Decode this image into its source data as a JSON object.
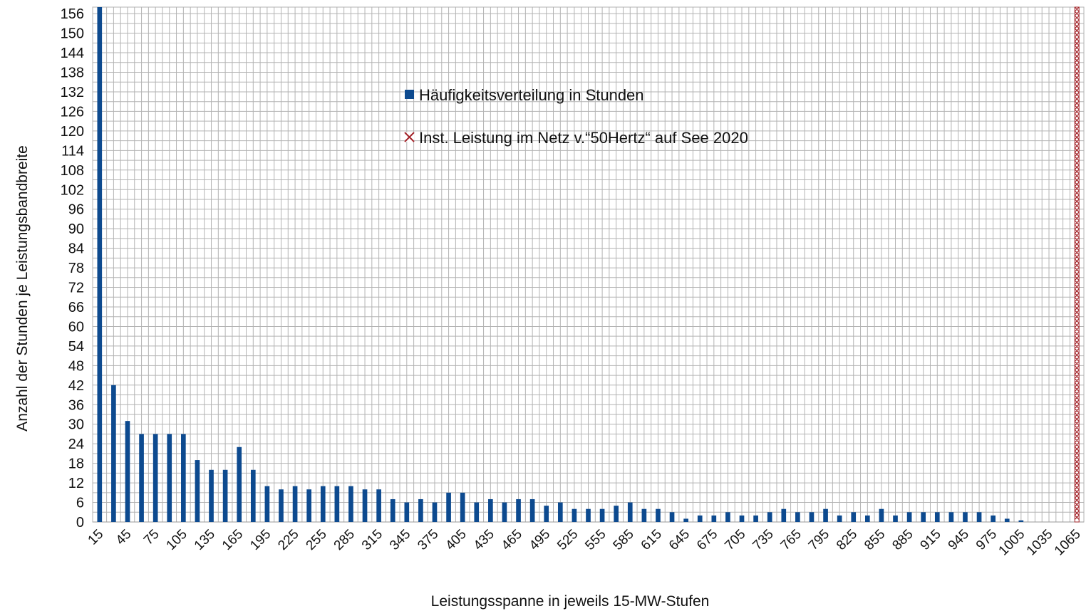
{
  "chart_data": {
    "type": "bar",
    "title": "",
    "xlabel": "Leistungsspanne in jeweils 15-MW-Stufen",
    "ylabel": "Anzahl der Stunden je Leistungsbandbreite",
    "ylim": [
      0,
      158
    ],
    "grid": true,
    "legend_position": "top-center",
    "x": [
      15,
      30,
      45,
      60,
      75,
      90,
      105,
      120,
      135,
      150,
      165,
      180,
      195,
      210,
      225,
      240,
      255,
      270,
      285,
      300,
      315,
      330,
      345,
      360,
      375,
      390,
      405,
      420,
      435,
      450,
      465,
      480,
      495,
      510,
      525,
      540,
      555,
      570,
      585,
      600,
      615,
      630,
      645,
      660,
      675,
      690,
      705,
      720,
      735,
      750,
      765,
      780,
      795,
      810,
      825,
      840,
      855,
      870,
      885,
      900,
      915,
      930,
      945,
      960,
      975,
      990,
      1005,
      1020,
      1035,
      1050,
      1065
    ],
    "x_tick_labels": [
      "15",
      "45",
      "75",
      "105",
      "135",
      "165",
      "195",
      "225",
      "255",
      "285",
      "315",
      "345",
      "375",
      "405",
      "435",
      "465",
      "495",
      "525",
      "555",
      "585",
      "615",
      "645",
      "675",
      "705",
      "735",
      "765",
      "795",
      "825",
      "855",
      "885",
      "915",
      "945",
      "975",
      "1005",
      "1035",
      "1065"
    ],
    "y_tick_labels": [
      "0",
      "6",
      "12",
      "18",
      "24",
      "30",
      "36",
      "42",
      "48",
      "54",
      "60",
      "66",
      "72",
      "78",
      "84",
      "90",
      "96",
      "102",
      "108",
      "114",
      "120",
      "126",
      "132",
      "138",
      "144",
      "150",
      "156"
    ],
    "series": [
      {
        "name": "Häufigkeitsverteilung in Stunden",
        "color": "#0d4a8f",
        "values": [
          158,
          42,
          31,
          27,
          27,
          27,
          27,
          19,
          16,
          16,
          23,
          16,
          11,
          10,
          11,
          10,
          11,
          11,
          11,
          10,
          10,
          7,
          6,
          7,
          6,
          9,
          9,
          6,
          7,
          6,
          7,
          7,
          5,
          6,
          4,
          4,
          4,
          5,
          6,
          4,
          4,
          3,
          1,
          2,
          2,
          3,
          2,
          2,
          3,
          4,
          3,
          3,
          4,
          2,
          3,
          2,
          4,
          2,
          3,
          3,
          3,
          3,
          3,
          3,
          2,
          1,
          0.5,
          0,
          0,
          0,
          0
        ]
      },
      {
        "name": "Inst. Leistung im Netz v.“50Hertz“ auf See 2020",
        "color": "#a3242a",
        "x": 1065,
        "value": 158
      }
    ]
  }
}
